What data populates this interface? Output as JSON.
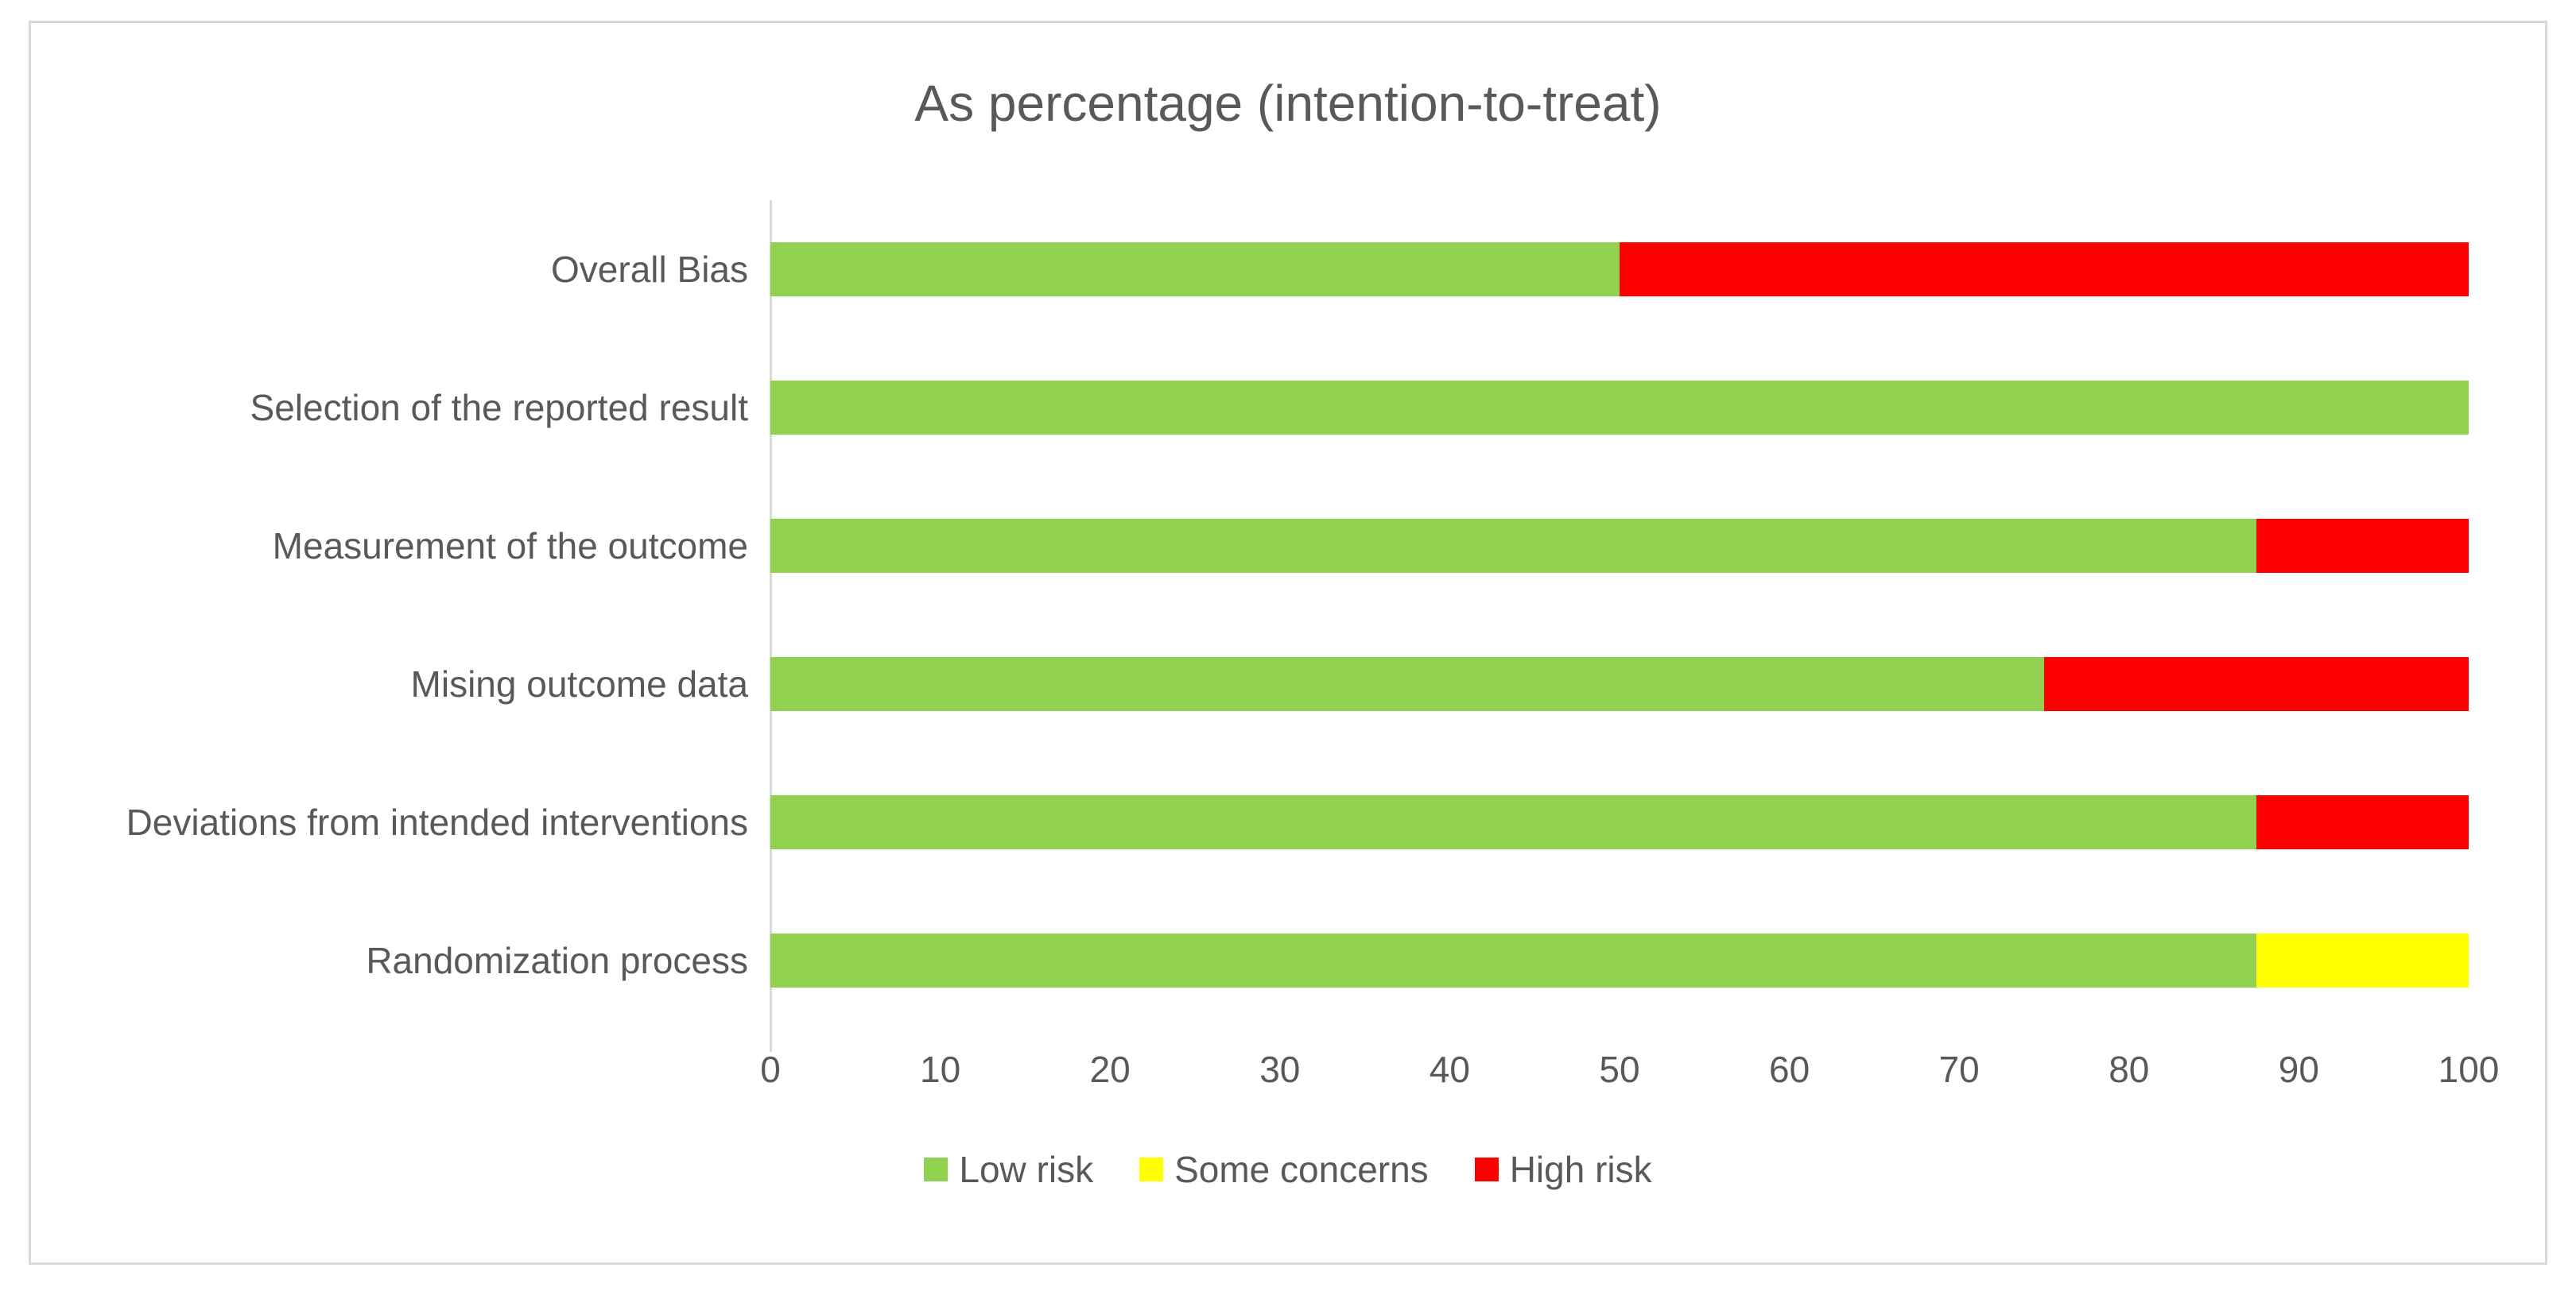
{
  "chart_data": {
    "type": "bar",
    "orientation": "horizontal",
    "stacked": true,
    "title": "As percentage (intention-to-treat)",
    "categories_top_to_bottom": [
      "Overall Bias",
      "Selection of the reported result",
      "Measurement of the outcome",
      "Mising outcome data",
      "Deviations from intended interventions",
      "Randomization process"
    ],
    "series": [
      {
        "name": "Low risk",
        "color": "#92D050",
        "values": [
          50,
          100,
          87.5,
          75,
          87.5,
          87.5
        ]
      },
      {
        "name": "Some concerns",
        "color": "#FFFF00",
        "values": [
          0,
          0,
          0,
          0,
          0,
          12.5
        ]
      },
      {
        "name": "High risk",
        "color": "#FF0000",
        "values": [
          50,
          0,
          12.5,
          25,
          12.5,
          0
        ]
      }
    ],
    "x_axis": {
      "min": 0,
      "max": 100,
      "tick_step": 10,
      "tick_labels": [
        "0",
        "10",
        "20",
        "30",
        "40",
        "50",
        "60",
        "70",
        "80",
        "90",
        "100"
      ]
    },
    "legend": {
      "position": "bottom",
      "entries": [
        "Low risk",
        "Some concerns",
        "High risk"
      ]
    },
    "grid": false
  },
  "style": {
    "text_color": "#595959",
    "axis_line_color": "#d9d9d9",
    "frame_border_color": "#d9d9d9"
  }
}
